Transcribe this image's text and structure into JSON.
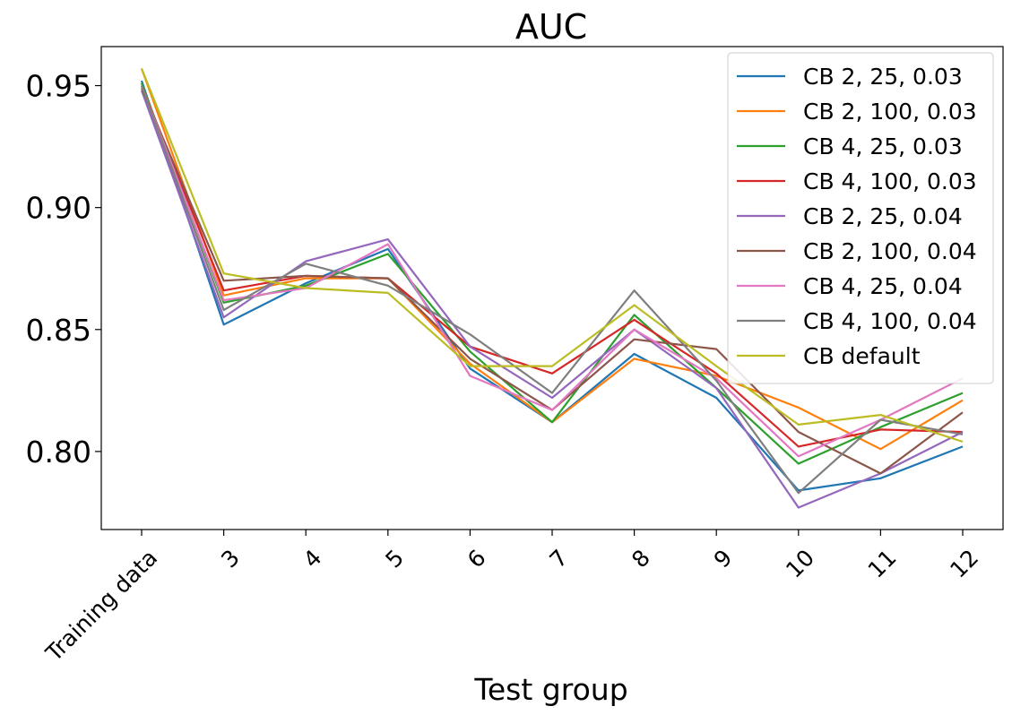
{
  "chart_data": {
    "type": "line",
    "title": "AUC",
    "xlabel": "Test group",
    "ylabel": "",
    "categories": [
      "Training data",
      "3",
      "4",
      "5",
      "6",
      "7",
      "8",
      "9",
      "10",
      "11",
      "12"
    ],
    "yticks": [
      "0.80",
      "0.85",
      "0.90",
      "0.95"
    ],
    "ylim": [
      0.768,
      0.966
    ],
    "grid": false,
    "legend_position": "top-right",
    "series": [
      {
        "name": "CB 2, 25, 0.03",
        "color": "#1f77b4",
        "values": [
          0.952,
          0.852,
          0.869,
          0.883,
          0.834,
          0.812,
          0.84,
          0.822,
          0.784,
          0.789,
          0.802
        ]
      },
      {
        "name": "CB 2, 100, 0.03",
        "color": "#ff7f0e",
        "values": [
          0.957,
          0.864,
          0.871,
          0.871,
          0.836,
          0.812,
          0.838,
          0.831,
          0.818,
          0.801,
          0.821
        ]
      },
      {
        "name": "CB 4, 25, 0.03",
        "color": "#2ca02c",
        "values": [
          0.951,
          0.861,
          0.868,
          0.881,
          0.841,
          0.812,
          0.856,
          0.826,
          0.795,
          0.81,
          0.824
        ]
      },
      {
        "name": "CB 4, 100, 0.03",
        "color": "#d62728",
        "values": [
          0.95,
          0.866,
          0.872,
          0.871,
          0.843,
          0.832,
          0.854,
          0.832,
          0.802,
          0.809,
          0.808
        ]
      },
      {
        "name": "CB 2, 25, 0.04",
        "color": "#9467bd",
        "values": [
          0.948,
          0.855,
          0.878,
          0.887,
          0.843,
          0.822,
          0.85,
          0.826,
          0.777,
          0.791,
          0.808
        ]
      },
      {
        "name": "CB 2, 100, 0.04",
        "color": "#8c564b",
        "values": [
          0.949,
          0.87,
          0.872,
          0.871,
          0.838,
          0.817,
          0.846,
          0.842,
          0.808,
          0.791,
          0.816
        ]
      },
      {
        "name": "CB 4, 25, 0.04",
        "color": "#e377c2",
        "values": [
          0.95,
          0.862,
          0.867,
          0.885,
          0.831,
          0.817,
          0.85,
          0.83,
          0.798,
          0.813,
          0.83
        ]
      },
      {
        "name": "CB 4, 100, 0.04",
        "color": "#7f7f7f",
        "values": [
          0.95,
          0.858,
          0.877,
          0.868,
          0.848,
          0.824,
          0.866,
          0.829,
          0.783,
          0.813,
          0.807
        ]
      },
      {
        "name": "CB default",
        "color": "#bcbd22",
        "values": [
          0.957,
          0.873,
          0.867,
          0.865,
          0.835,
          0.835,
          0.86,
          0.835,
          0.811,
          0.815,
          0.804
        ]
      }
    ]
  }
}
